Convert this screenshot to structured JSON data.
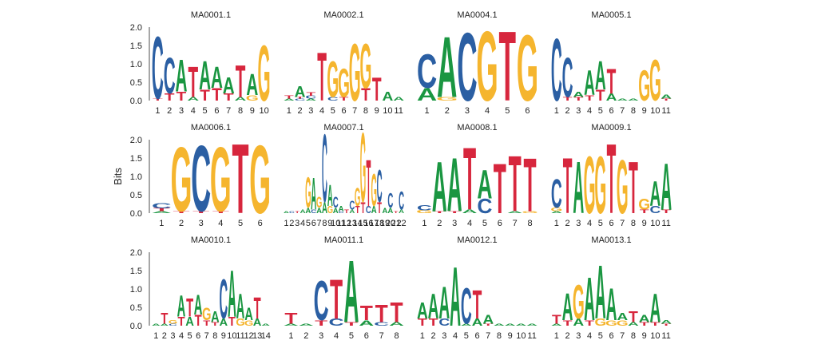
{
  "colors": {
    "A": "#1a9641",
    "C": "#2b5fa3",
    "G": "#f5b52e",
    "T": "#d7263d"
  },
  "chart_data": {
    "type": "sequence-logo",
    "ylabel": "Bits",
    "ylim": [
      0,
      2
    ],
    "yticks": [
      "0.0",
      "0.5",
      "1.0",
      "1.5",
      "2.0"
    ],
    "grid": false,
    "motifs": [
      {
        "title": "MA0001.1",
        "positions": [
          {
            "C": 1.75,
            "T": 0.05
          },
          {
            "C": 1.0,
            "T": 0.2
          },
          {
            "A": 0.9,
            "T": 0.25
          },
          {
            "T": 0.85,
            "A": 0.1
          },
          {
            "A": 0.8,
            "T": 0.3
          },
          {
            "A": 0.6,
            "T": 0.35
          },
          {
            "A": 0.45,
            "T": 0.2
          },
          {
            "T": 0.9,
            "A": 0.1
          },
          {
            "A": 0.6,
            "G": 0.15
          },
          {
            "G": 1.55
          }
        ]
      },
      {
        "title": "MA0002.1",
        "positions": [
          {
            "T": 0.08,
            "A": 0.05
          },
          {
            "A": 0.3,
            "C": 0.05,
            "T": 0.05
          },
          {
            "T": 0.1,
            "C": 0.08,
            "A": 0.05
          },
          {
            "T": 1.35
          },
          {
            "G": 1.0,
            "C": 0.1
          },
          {
            "G": 0.8,
            "T": 0.1
          },
          {
            "G": 1.6
          },
          {
            "G": 1.25,
            "T": 0.35
          },
          {
            "T": 0.65
          },
          {
            "A": 0.25
          },
          {
            "A": 0.1
          }
        ]
      },
      {
        "title": "MA0004.1",
        "positions": [
          {
            "C": 0.95,
            "A": 0.35
          },
          {
            "A": 1.7,
            "G": 0.1
          },
          {
            "C": 1.9
          },
          {
            "G": 1.95
          },
          {
            "T": 1.95
          },
          {
            "G": 1.85
          }
        ]
      },
      {
        "title": "MA0005.1",
        "positions": [
          {
            "C": 1.75
          },
          {
            "C": 1.1,
            "T": 0.1
          },
          {
            "A": 0.15,
            "T": 0.1
          },
          {
            "A": 0.7,
            "T": 0.15
          },
          {
            "A": 0.8,
            "T": 0.3
          },
          {
            "T": 0.7,
            "A": 0.2
          },
          {
            "A": 0.05
          },
          {
            "A": 0.05
          },
          {
            "G": 0.85
          },
          {
            "G": 1.15
          },
          {
            "A": 0.12,
            "T": 0.05
          }
        ]
      },
      {
        "title": "MA0006.1",
        "positions": [
          {
            "C": 0.15,
            "T": 0.08,
            "A": 0.05
          },
          {
            "G": 1.8,
            "T": 0.05
          },
          {
            "C": 1.85,
            "T": 0.05
          },
          {
            "G": 1.8,
            "T": 0.05
          },
          {
            "T": 1.95
          },
          {
            "G": 1.9
          }
        ]
      },
      {
        "title": "MA0007.1",
        "positions": [
          {
            "A": 0.05
          },
          {
            "C": 0.05
          },
          {
            "T": 0.05
          },
          {
            "A": 0.1
          },
          {
            "G": 0.85,
            "A": 0.15
          },
          {
            "A": 0.9,
            "C": 0.1
          },
          {
            "G": 0.3,
            "A": 0.15
          },
          {
            "C": 1.9,
            "A": 0.3
          },
          {
            "A": 0.6,
            "G": 0.2
          },
          {
            "C": 0.3,
            "A": 0.15
          },
          {
            "A": 0.15,
            "C": 0.05
          },
          {
            "T": 0.1
          },
          {
            "C": 0.25,
            "A": 0.1
          },
          {
            "G": 0.5,
            "T": 0.2
          },
          {
            "G": 1.95,
            "T": 0.3
          },
          {
            "T": 1.3,
            "C": 0.2
          },
          {
            "G": 0.9,
            "A": 0.2
          },
          {
            "C": 0.9,
            "T": 0.3
          },
          {
            "A": 0.15
          },
          {
            "C": 0.4,
            "A": 0.15
          },
          {
            "T": 0.05
          },
          {
            "C": 0.5,
            "A": 0.1
          }
        ]
      },
      {
        "title": "MA0008.1",
        "positions": [
          {
            "C": 0.15,
            "G": 0.08
          },
          {
            "A": 1.4,
            "T": 0.05
          },
          {
            "A": 1.5,
            "T": 0.05
          },
          {
            "T": 1.75,
            "A": 0.1
          },
          {
            "A": 0.8,
            "C": 0.4
          },
          {
            "T": 1.4
          },
          {
            "T": 1.55,
            "A": 0.05
          },
          {
            "T": 1.5,
            "G": 0.05
          }
        ]
      },
      {
        "title": "MA0009.1",
        "positions": [
          {
            "C": 0.8,
            "G": 0.1,
            "A": 0.05
          },
          {
            "T": 1.55
          },
          {
            "A": 1.45
          },
          {
            "G": 1.6
          },
          {
            "G": 1.6
          },
          {
            "T": 1.95
          },
          {
            "G": 1.5
          },
          {
            "T": 1.45
          },
          {
            "G": 0.3,
            "T": 0.1
          },
          {
            "A": 0.7,
            "C": 0.2
          },
          {
            "A": 1.3,
            "T": 0.1
          }
        ]
      },
      {
        "title": "MA0010.1",
        "positions": [
          {
            "A": 0.05
          },
          {
            "T": 0.3,
            "A": 0.05
          },
          {
            "G": 0.1,
            "C": 0.05
          },
          {
            "A": 0.6,
            "T": 0.25
          },
          {
            "T": 0.5,
            "A": 0.25
          },
          {
            "A": 0.55,
            "T": 0.3
          },
          {
            "G": 0.35,
            "T": 0.15
          },
          {
            "A": 0.3,
            "T": 0.1
          },
          {
            "C": 1.1,
            "A": 0.2
          },
          {
            "A": 1.3,
            "T": 0.25
          },
          {
            "A": 0.7,
            "G": 0.2
          },
          {
            "A": 0.35,
            "G": 0.15
          },
          {
            "T": 0.6,
            "A": 0.2
          },
          {
            "A": 0.05
          }
        ]
      },
      {
        "title": "MA0011.1",
        "positions": [
          {
            "T": 0.3,
            "A": 0.05
          },
          {
            "A": 0.05
          },
          {
            "C": 1.1,
            "T": 0.15
          },
          {
            "T": 1.1,
            "C": 0.2
          },
          {
            "A": 1.75,
            "T": 0.1
          },
          {
            "T": 0.4,
            "A": 0.15
          },
          {
            "T": 0.5,
            "C": 0.1
          },
          {
            "T": 0.55,
            "A": 0.1
          }
        ]
      },
      {
        "title": "MA0012.1",
        "positions": [
          {
            "A": 0.45,
            "T": 0.2
          },
          {
            "A": 0.7,
            "T": 0.2
          },
          {
            "A": 0.9,
            "C": 0.2
          },
          {
            "A": 1.65
          },
          {
            "C": 1.0,
            "A": 0.05
          },
          {
            "T": 0.8,
            "A": 0.2
          },
          {
            "A": 0.25,
            "T": 0.05
          },
          {
            "A": 0.05
          },
          {
            "A": 0.05
          },
          {
            "A": 0.05
          },
          {
            "A": 0.05
          }
        ]
      },
      {
        "title": "MA0013.1",
        "positions": [
          {
            "T": 0.25,
            "A": 0.05
          },
          {
            "A": 0.75,
            "T": 0.15
          },
          {
            "G": 0.95,
            "A": 0.2
          },
          {
            "A": 1.2,
            "T": 0.15
          },
          {
            "A": 1.5,
            "G": 0.2
          },
          {
            "A": 0.9,
            "G": 0.15
          },
          {
            "A": 0.2,
            "G": 0.15
          },
          {
            "T": 0.3,
            "A": 0.1
          },
          {
            "A": 0.2,
            "T": 0.1
          },
          {
            "A": 0.8,
            "T": 0.1
          },
          {
            "A": 0.1,
            "T": 0.05
          }
        ]
      }
    ]
  }
}
